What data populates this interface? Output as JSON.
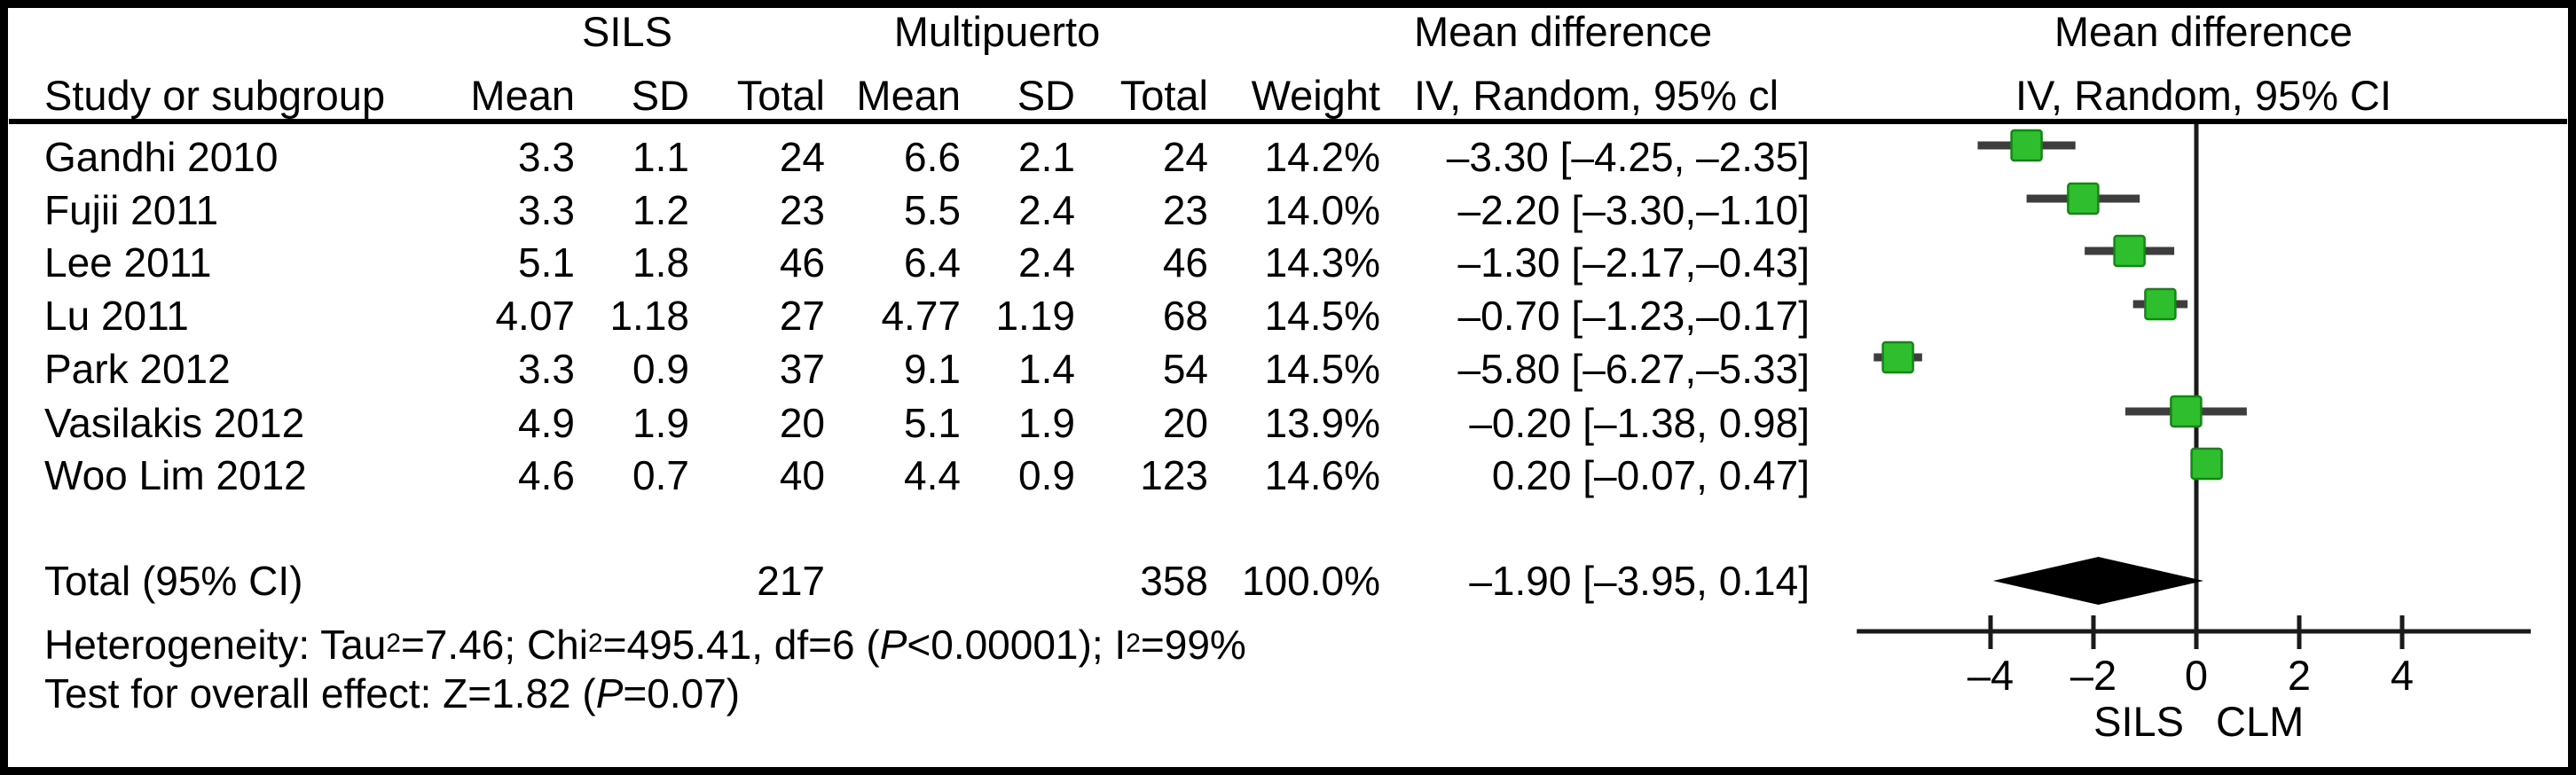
{
  "table": {
    "group1_header": "SILS",
    "group2_header": "Multipuerto",
    "md_text_header": {
      "line1": "Mean difference",
      "line2": "IV, Random, 95% cl"
    },
    "md_plot_header": {
      "line1": "Mean difference",
      "line2": "IV, Random, 95% CI"
    },
    "columns": {
      "study": "Study or subgroup",
      "mean1": "Mean",
      "sd1": "SD",
      "total1": "Total",
      "mean2": "Mean",
      "sd2": "SD",
      "total2": "Total",
      "weight": "Weight"
    },
    "studies": [
      {
        "name": "Gandhi 2010",
        "g1_mean": "3.3",
        "g1_sd": "1.1",
        "g1_total": "24",
        "g2_mean": "6.6",
        "g2_sd": "2.1",
        "g2_total": "24",
        "weight": "14.2%",
        "md_ci": "–3.30 [–4.25, –2.35]"
      },
      {
        "name": "Fujii 2011",
        "g1_mean": "3.3",
        "g1_sd": "1.2",
        "g1_total": "23",
        "g2_mean": "5.5",
        "g2_sd": "2.4",
        "g2_total": "23",
        "weight": "14.0%",
        "md_ci": "–2.20 [–3.30,–1.10]"
      },
      {
        "name": "Lee 2011",
        "g1_mean": "5.1",
        "g1_sd": "1.8",
        "g1_total": "46",
        "g2_mean": "6.4",
        "g2_sd": "2.4",
        "g2_total": "46",
        "weight": "14.3%",
        "md_ci": "–1.30 [–2.17,–0.43]"
      },
      {
        "name": "Lu 2011",
        "g1_mean": "4.07",
        "g1_sd": "1.18",
        "g1_total": "27",
        "g2_mean": "4.77",
        "g2_sd": "1.19",
        "g2_total": "68",
        "weight": "14.5%",
        "md_ci": "–0.70 [–1.23,–0.17]"
      },
      {
        "name": "Park 2012",
        "g1_mean": "3.3",
        "g1_sd": "0.9",
        "g1_total": "37",
        "g2_mean": "9.1",
        "g2_sd": "1.4",
        "g2_total": "54",
        "weight": "14.5%",
        "md_ci": "–5.80 [–6.27,–5.33]"
      },
      {
        "name": "Vasilakis 2012",
        "g1_mean": "4.9",
        "g1_sd": "1.9",
        "g1_total": "20",
        "g2_mean": "5.1",
        "g2_sd": "1.9",
        "g2_total": "20",
        "weight": "13.9%",
        "md_ci": "–0.20 [–1.38, 0.98]"
      },
      {
        "name": "Woo Lim 2012",
        "g1_mean": "4.6",
        "g1_sd": "0.7",
        "g1_total": "40",
        "g2_mean": "4.4",
        "g2_sd": "0.9",
        "g2_total": "123",
        "weight": "14.6%",
        "md_ci": "0.20 [–0.07, 0.47]"
      }
    ],
    "total_row": {
      "label": "Total (95% CI)",
      "g1_total": "217",
      "g2_total": "358",
      "weight": "100.0%",
      "md_ci": "–1.90 [–3.95, 0.14]"
    }
  },
  "footnotes": {
    "heterogeneity_parts": [
      "Heterogeneity: Tau",
      "2",
      "=7.46; Chi",
      "2",
      "=495.41, df=6 (",
      "P",
      "<0.00001); I",
      "2",
      "=99%"
    ],
    "overall_effect_parts": [
      "Test for overall effect: Z=1.82 (",
      "P",
      "=0.07)"
    ]
  },
  "chart_data": {
    "type": "scatter",
    "subtype": "forest-plot",
    "title": "Mean difference IV, Random, 95% CI",
    "xlabel_left": "SILS",
    "xlabel_right": "CLM",
    "x_ticks": [
      -4,
      -2,
      0,
      2,
      4
    ],
    "x_tick_labels": [
      "–4",
      "–2",
      "0",
      "2",
      "4"
    ],
    "xlim": [
      -6.6,
      6.5
    ],
    "zero_line": 0,
    "studies": [
      {
        "name": "Gandhi 2010",
        "md": -3.3,
        "ci_low": -4.25,
        "ci_high": -2.35,
        "weight_pct": 14.2
      },
      {
        "name": "Fujii 2011",
        "md": -2.2,
        "ci_low": -3.3,
        "ci_high": -1.1,
        "weight_pct": 14.0
      },
      {
        "name": "Lee 2011",
        "md": -1.3,
        "ci_low": -2.17,
        "ci_high": -0.43,
        "weight_pct": 14.3
      },
      {
        "name": "Lu 2011",
        "md": -0.7,
        "ci_low": -1.23,
        "ci_high": -0.17,
        "weight_pct": 14.5
      },
      {
        "name": "Park 2012",
        "md": -5.8,
        "ci_low": -6.27,
        "ci_high": -5.33,
        "weight_pct": 14.5
      },
      {
        "name": "Vasilakis 2012",
        "md": -0.2,
        "ci_low": -1.38,
        "ci_high": 0.98,
        "weight_pct": 13.9
      },
      {
        "name": "Woo Lim 2012",
        "md": 0.2,
        "ci_low": -0.07,
        "ci_high": 0.47,
        "weight_pct": 14.6
      }
    ],
    "total": {
      "name": "Total (95% CI)",
      "md": -1.9,
      "ci_low": -3.95,
      "ci_high": 0.14,
      "weight_pct": 100.0
    },
    "marker": "green-square",
    "colors": {
      "marker_fill": "#2EBE2E",
      "marker_stroke": "#158515",
      "ci_line": "#3D3D3D",
      "diamond": "#000000",
      "axis": "#1A1A1A"
    }
  }
}
